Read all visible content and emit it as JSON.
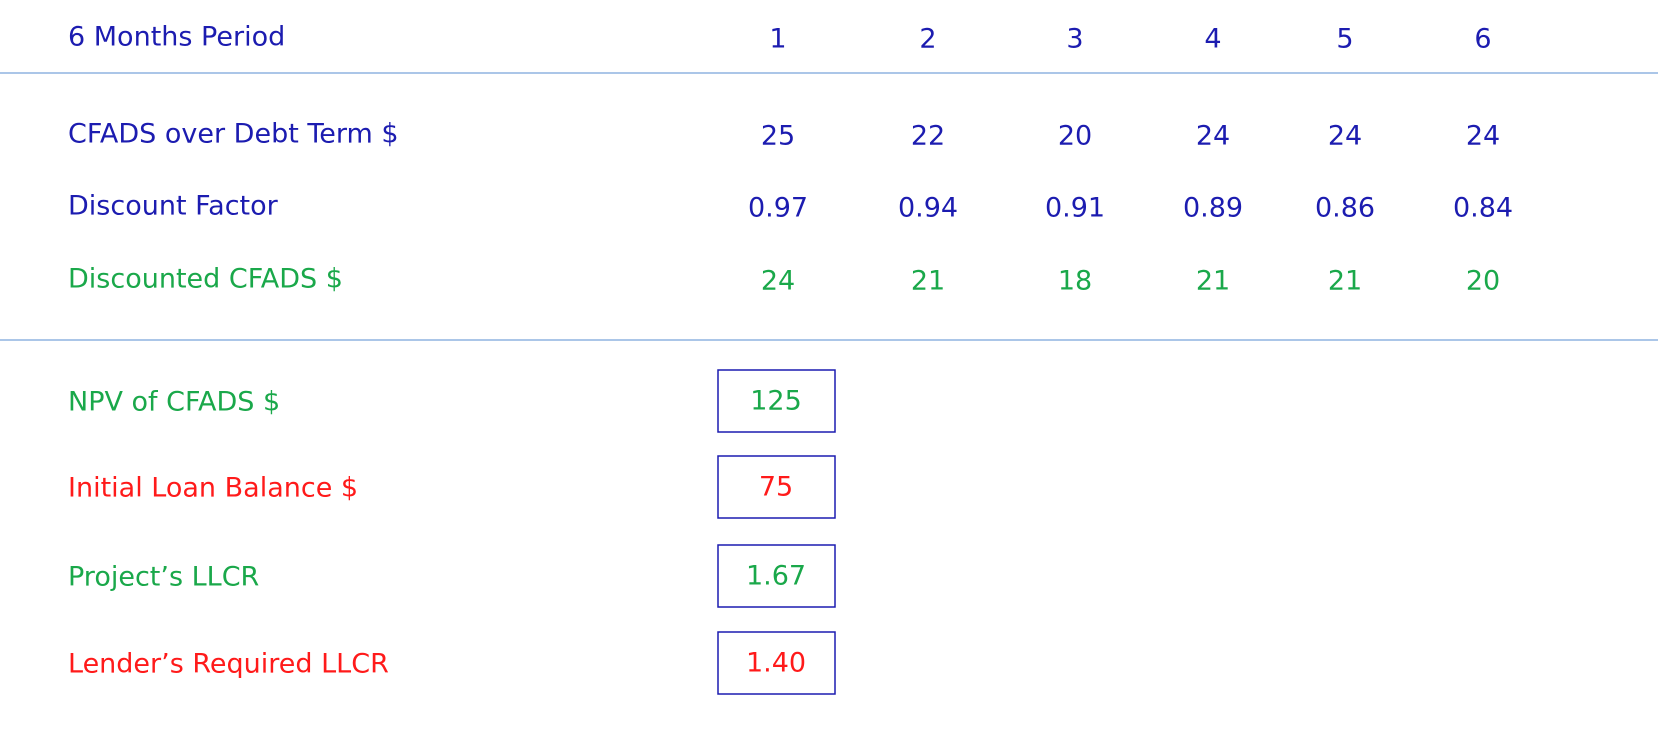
{
  "header": {
    "label": "6 Months Period",
    "periods": [
      "1",
      "2",
      "3",
      "4",
      "5",
      "6"
    ]
  },
  "table": {
    "rows": [
      {
        "label": "CFADS over Debt Term $",
        "values": [
          "25",
          "22",
          "20",
          "24",
          "24",
          "24"
        ]
      },
      {
        "label": "Discount Factor",
        "values": [
          "0.97",
          "0.94",
          "0.91",
          "0.89",
          "0.86",
          "0.84"
        ]
      },
      {
        "label": "Discounted CFADS $",
        "values": [
          "24",
          "21",
          "18",
          "21",
          "21",
          "20"
        ]
      }
    ]
  },
  "summary": [
    {
      "label": "NPV of CFADS $",
      "value": "125"
    },
    {
      "label": "Initial Loan Balance $",
      "value": "75"
    },
    {
      "label": "Project’s LLCR",
      "value": "1.67"
    },
    {
      "label": "Lender’s Required LLCR",
      "value": "1.40"
    }
  ]
}
